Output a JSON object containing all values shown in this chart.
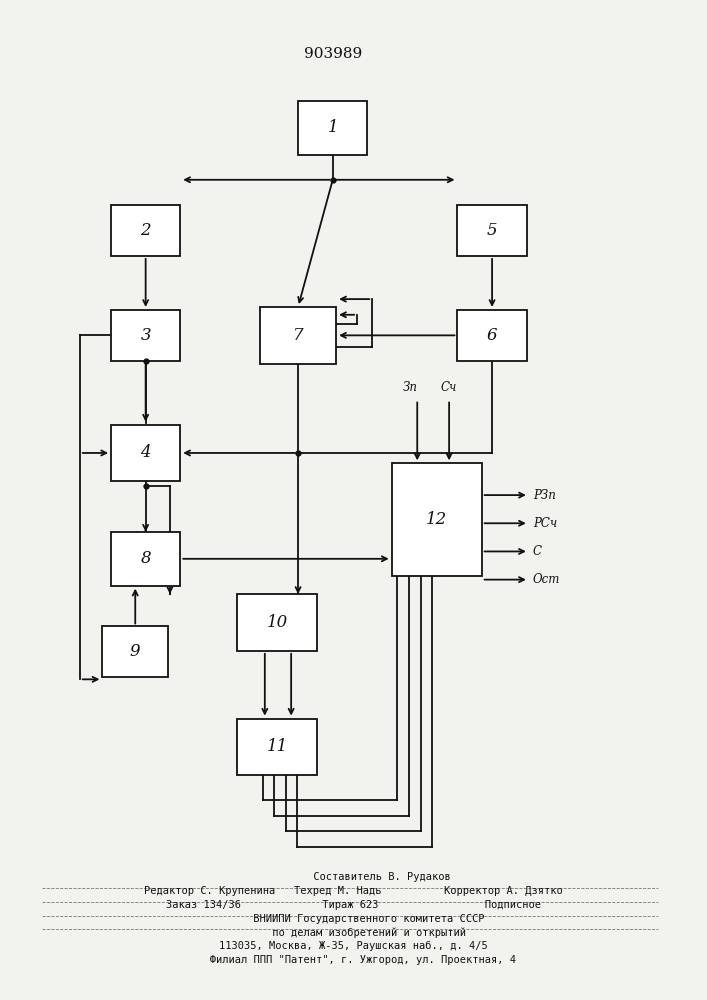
{
  "title": "903989",
  "bg_color": "#f2f2ee",
  "line_color": "#111111",
  "blocks": {
    "1": [
      0.47,
      0.88,
      0.1,
      0.055
    ],
    "2": [
      0.2,
      0.775,
      0.1,
      0.052
    ],
    "3": [
      0.2,
      0.668,
      0.1,
      0.052
    ],
    "4": [
      0.2,
      0.548,
      0.1,
      0.058
    ],
    "5": [
      0.7,
      0.775,
      0.1,
      0.052
    ],
    "6": [
      0.7,
      0.668,
      0.1,
      0.052
    ],
    "7": [
      0.42,
      0.668,
      0.11,
      0.058
    ],
    "8": [
      0.2,
      0.44,
      0.1,
      0.055
    ],
    "9": [
      0.185,
      0.345,
      0.095,
      0.052
    ],
    "10": [
      0.39,
      0.375,
      0.115,
      0.058
    ],
    "11": [
      0.39,
      0.248,
      0.115,
      0.058
    ],
    "12": [
      0.62,
      0.48,
      0.13,
      0.115
    ]
  },
  "output_labels": [
    "РЗп",
    "РСч",
    "С",
    "Ост"
  ],
  "input_labels": [
    "Зп",
    "Сч"
  ],
  "footer_lines": [
    "         Составитель В. Рудаков",
    "Редактор С. Крупенина   Техред М. Надь          Корректор А. Дзятко",
    "Заказ 134/36             Тираж 623                 Подписное",
    "     ВНИИПИ Государственного комитета СССР",
    "     по делам изобретений и открытий",
    "113035, Москва, Ж-35, Раушская наб., д. 4/5",
    "   Филиал ППП \"Патент\", г. Ужгород, ул. Проектная, 4"
  ]
}
